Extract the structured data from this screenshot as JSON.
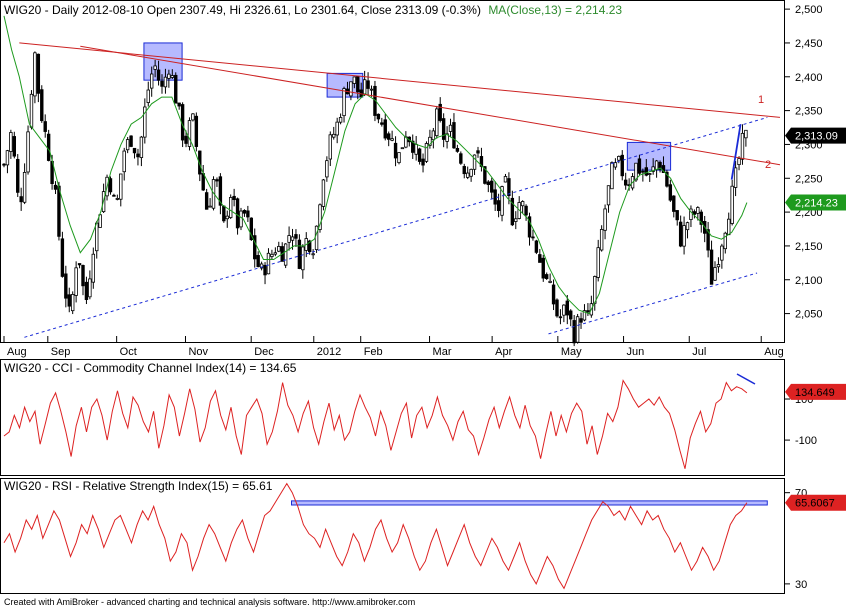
{
  "chart_data": [
    {
      "type": "candlestick",
      "title_prefix": "WIG20 - Daily 2012-08-10 Open 2307.49, Hi 2326.61, Lo 2301.64, Close 2313.09 (-0.3%)",
      "ma_label": "MA(Close,13) = 2,214.23",
      "x_month_labels": [
        "Aug",
        "Sep",
        "Oct",
        "Nov",
        "Dec",
        "2012",
        "Feb",
        "Mar",
        "Apr",
        "May",
        "Jun",
        "Jul",
        "Aug"
      ],
      "y_ticks": [
        "2,500",
        "2,450",
        "2,400",
        "2,350",
        "2,300",
        "2,250",
        "2,200",
        "2,150",
        "2,100",
        "2,050"
      ],
      "y_tick_values": [
        2500,
        2450,
        2400,
        2350,
        2300,
        2250,
        2200,
        2150,
        2100,
        2050
      ],
      "ylim": [
        2008,
        2512
      ],
      "last_close_label": "2,313.09",
      "last_close": 2313.09,
      "ma_value_label": "2,214.23",
      "ma_value": 2214.23,
      "line_labels": [
        "1",
        "2"
      ],
      "close_path": [
        {
          "d": 0,
          "v": 2270
        },
        {
          "d": 3,
          "v": 2320
        },
        {
          "d": 6,
          "v": 2200
        },
        {
          "d": 9,
          "v": 2300
        },
        {
          "d": 12,
          "v": 2440
        },
        {
          "d": 14,
          "v": 2360
        },
        {
          "d": 17,
          "v": 2300
        },
        {
          "d": 20,
          "v": 2230
        },
        {
          "d": 23,
          "v": 2110
        },
        {
          "d": 26,
          "v": 2040
        },
        {
          "d": 29,
          "v": 2150
        },
        {
          "d": 32,
          "v": 2060
        },
        {
          "d": 35,
          "v": 2150
        },
        {
          "d": 38,
          "v": 2210
        },
        {
          "d": 41,
          "v": 2260
        },
        {
          "d": 44,
          "v": 2200
        },
        {
          "d": 47,
          "v": 2290
        },
        {
          "d": 50,
          "v": 2310
        },
        {
          "d": 53,
          "v": 2280
        },
        {
          "d": 56,
          "v": 2370
        },
        {
          "d": 59,
          "v": 2420
        },
        {
          "d": 62,
          "v": 2380
        },
        {
          "d": 65,
          "v": 2420
        },
        {
          "d": 68,
          "v": 2360
        },
        {
          "d": 71,
          "v": 2300
        },
        {
          "d": 74,
          "v": 2340
        },
        {
          "d": 77,
          "v": 2260
        },
        {
          "d": 80,
          "v": 2200
        },
        {
          "d": 83,
          "v": 2260
        },
        {
          "d": 86,
          "v": 2170
        },
        {
          "d": 89,
          "v": 2230
        },
        {
          "d": 92,
          "v": 2180
        },
        {
          "d": 95,
          "v": 2200
        },
        {
          "d": 98,
          "v": 2140
        },
        {
          "d": 101,
          "v": 2110
        },
        {
          "d": 104,
          "v": 2130
        },
        {
          "d": 107,
          "v": 2150
        },
        {
          "d": 110,
          "v": 2140
        },
        {
          "d": 113,
          "v": 2180
        },
        {
          "d": 116,
          "v": 2130
        },
        {
          "d": 119,
          "v": 2160
        },
        {
          "d": 122,
          "v": 2150
        },
        {
          "d": 125,
          "v": 2250
        },
        {
          "d": 128,
          "v": 2300
        },
        {
          "d": 131,
          "v": 2330
        },
        {
          "d": 134,
          "v": 2380
        },
        {
          "d": 137,
          "v": 2400
        },
        {
          "d": 140,
          "v": 2370
        },
        {
          "d": 143,
          "v": 2390
        },
        {
          "d": 146,
          "v": 2350
        },
        {
          "d": 149,
          "v": 2330
        },
        {
          "d": 152,
          "v": 2310
        },
        {
          "d": 155,
          "v": 2280
        },
        {
          "d": 158,
          "v": 2320
        },
        {
          "d": 161,
          "v": 2300
        },
        {
          "d": 164,
          "v": 2260
        },
        {
          "d": 167,
          "v": 2300
        },
        {
          "d": 170,
          "v": 2340
        },
        {
          "d": 173,
          "v": 2310
        },
        {
          "d": 176,
          "v": 2320
        },
        {
          "d": 179,
          "v": 2280
        },
        {
          "d": 182,
          "v": 2260
        },
        {
          "d": 185,
          "v": 2290
        },
        {
          "d": 188,
          "v": 2260
        },
        {
          "d": 191,
          "v": 2230
        },
        {
          "d": 194,
          "v": 2200
        },
        {
          "d": 197,
          "v": 2240
        },
        {
          "d": 200,
          "v": 2190
        },
        {
          "d": 203,
          "v": 2220
        },
        {
          "d": 206,
          "v": 2180
        },
        {
          "d": 209,
          "v": 2150
        },
        {
          "d": 212,
          "v": 2110
        },
        {
          "d": 215,
          "v": 2080
        },
        {
          "d": 218,
          "v": 2040
        },
        {
          "d": 221,
          "v": 2060
        },
        {
          "d": 224,
          "v": 2020
        },
        {
          "d": 227,
          "v": 2050
        },
        {
          "d": 230,
          "v": 2040
        },
        {
          "d": 233,
          "v": 2120
        },
        {
          "d": 236,
          "v": 2200
        },
        {
          "d": 239,
          "v": 2260
        },
        {
          "d": 242,
          "v": 2270
        },
        {
          "d": 245,
          "v": 2240
        },
        {
          "d": 248,
          "v": 2270
        },
        {
          "d": 251,
          "v": 2260
        },
        {
          "d": 254,
          "v": 2250
        },
        {
          "d": 257,
          "v": 2280
        },
        {
          "d": 260,
          "v": 2250
        },
        {
          "d": 263,
          "v": 2200
        },
        {
          "d": 266,
          "v": 2160
        },
        {
          "d": 269,
          "v": 2190
        },
        {
          "d": 272,
          "v": 2200
        },
        {
          "d": 275,
          "v": 2180
        },
        {
          "d": 278,
          "v": 2100
        },
        {
          "d": 281,
          "v": 2140
        },
        {
          "d": 284,
          "v": 2190
        },
        {
          "d": 287,
          "v": 2240
        },
        {
          "d": 290,
          "v": 2300
        },
        {
          "d": 292,
          "v": 2313
        }
      ],
      "ma_path": [
        {
          "d": 0,
          "v": 2490
        },
        {
          "d": 3,
          "v": 2440
        },
        {
          "d": 6,
          "v": 2400
        },
        {
          "d": 10,
          "v": 2330
        },
        {
          "d": 14,
          "v": 2310
        },
        {
          "d": 18,
          "v": 2290
        },
        {
          "d": 22,
          "v": 2230
        },
        {
          "d": 26,
          "v": 2180
        },
        {
          "d": 30,
          "v": 2140
        },
        {
          "d": 34,
          "v": 2160
        },
        {
          "d": 38,
          "v": 2200
        },
        {
          "d": 42,
          "v": 2260
        },
        {
          "d": 46,
          "v": 2300
        },
        {
          "d": 50,
          "v": 2330
        },
        {
          "d": 54,
          "v": 2340
        },
        {
          "d": 58,
          "v": 2360
        },
        {
          "d": 62,
          "v": 2370
        },
        {
          "d": 66,
          "v": 2370
        },
        {
          "d": 70,
          "v": 2330
        },
        {
          "d": 74,
          "v": 2300
        },
        {
          "d": 78,
          "v": 2260
        },
        {
          "d": 82,
          "v": 2230
        },
        {
          "d": 86,
          "v": 2210
        },
        {
          "d": 90,
          "v": 2200
        },
        {
          "d": 94,
          "v": 2190
        },
        {
          "d": 98,
          "v": 2160
        },
        {
          "d": 102,
          "v": 2130
        },
        {
          "d": 106,
          "v": 2130
        },
        {
          "d": 110,
          "v": 2140
        },
        {
          "d": 114,
          "v": 2150
        },
        {
          "d": 118,
          "v": 2150
        },
        {
          "d": 122,
          "v": 2160
        },
        {
          "d": 126,
          "v": 2200
        },
        {
          "d": 130,
          "v": 2260
        },
        {
          "d": 134,
          "v": 2320
        },
        {
          "d": 138,
          "v": 2360
        },
        {
          "d": 142,
          "v": 2375
        },
        {
          "d": 146,
          "v": 2365
        },
        {
          "d": 150,
          "v": 2345
        },
        {
          "d": 154,
          "v": 2325
        },
        {
          "d": 158,
          "v": 2310
        },
        {
          "d": 162,
          "v": 2300
        },
        {
          "d": 166,
          "v": 2295
        },
        {
          "d": 170,
          "v": 2310
        },
        {
          "d": 174,
          "v": 2315
        },
        {
          "d": 178,
          "v": 2305
        },
        {
          "d": 182,
          "v": 2290
        },
        {
          "d": 186,
          "v": 2275
        },
        {
          "d": 190,
          "v": 2260
        },
        {
          "d": 194,
          "v": 2240
        },
        {
          "d": 198,
          "v": 2220
        },
        {
          "d": 202,
          "v": 2205
        },
        {
          "d": 206,
          "v": 2190
        },
        {
          "d": 210,
          "v": 2160
        },
        {
          "d": 214,
          "v": 2120
        },
        {
          "d": 218,
          "v": 2090
        },
        {
          "d": 222,
          "v": 2070
        },
        {
          "d": 226,
          "v": 2055
        },
        {
          "d": 230,
          "v": 2050
        },
        {
          "d": 234,
          "v": 2080
        },
        {
          "d": 238,
          "v": 2140
        },
        {
          "d": 242,
          "v": 2200
        },
        {
          "d": 246,
          "v": 2240
        },
        {
          "d": 250,
          "v": 2255
        },
        {
          "d": 254,
          "v": 2260
        },
        {
          "d": 258,
          "v": 2265
        },
        {
          "d": 262,
          "v": 2250
        },
        {
          "d": 266,
          "v": 2220
        },
        {
          "d": 270,
          "v": 2200
        },
        {
          "d": 274,
          "v": 2185
        },
        {
          "d": 278,
          "v": 2165
        },
        {
          "d": 282,
          "v": 2160
        },
        {
          "d": 286,
          "v": 2170
        },
        {
          "d": 290,
          "v": 2195
        },
        {
          "d": 292,
          "v": 2214
        }
      ],
      "resistance_line": [
        {
          "d": 6,
          "v": 2450
        },
        {
          "d": 305,
          "v": 2340
        }
      ],
      "support_line": [
        {
          "d": 8,
          "v": 2015
        },
        {
          "d": 300,
          "v": 2340
        }
      ],
      "red_line_2": [
        {
          "d": 30,
          "v": 2445
        },
        {
          "d": 305,
          "v": 2270
        }
      ],
      "lower_channel": [
        {
          "d": 214,
          "v": 2020
        },
        {
          "d": 296,
          "v": 2110
        }
      ],
      "highlight_boxes": [
        {
          "d0": 55,
          "d1": 70,
          "v0": 2395,
          "v1": 2450
        },
        {
          "d0": 127,
          "d1": 141,
          "v0": 2370,
          "v1": 2405
        },
        {
          "d0": 245,
          "d1": 262,
          "v0": 2262,
          "v1": 2303
        }
      ]
    },
    {
      "type": "line",
      "title_prefix": "WIG20 - CCI - Commodity Channel Index(14) = 134.65",
      "y_ticks": [
        "100",
        "-100"
      ],
      "y_tick_values": [
        100,
        -100
      ],
      "ylim": [
        -270,
        290
      ],
      "last_value_label": "134.649",
      "last_value": 134.65,
      "values": [
        -80,
        -60,
        20,
        -40,
        60,
        -10,
        40,
        -120,
        -20,
        80,
        130,
        40,
        -60,
        -180,
        -30,
        60,
        -60,
        60,
        100,
        20,
        -100,
        40,
        140,
        30,
        -40,
        110,
        70,
        -10,
        -60,
        40,
        -140,
        -30,
        120,
        60,
        -80,
        30,
        150,
        50,
        -110,
        -40,
        90,
        140,
        20,
        -50,
        60,
        -80,
        -170,
        20,
        60,
        100,
        30,
        -120,
        -60,
        40,
        180,
        70,
        20,
        -60,
        30,
        90,
        -40,
        -120,
        -10,
        80,
        -50,
        20,
        -100,
        -60,
        40,
        120,
        60,
        10,
        -80,
        40,
        -30,
        -150,
        -60,
        30,
        80,
        -90,
        20,
        60,
        -40,
        20,
        110,
        20,
        -30,
        -100,
        -10,
        40,
        -50,
        -80,
        -170,
        -90,
        0,
        60,
        -40,
        40,
        110,
        20,
        -40,
        70,
        -30,
        -80,
        -190,
        -70,
        40,
        -80,
        20,
        -60,
        30,
        80,
        40,
        -120,
        -30,
        -170,
        -80,
        30,
        -10,
        60,
        190,
        150,
        100,
        60,
        80,
        100,
        70,
        110,
        60,
        30,
        -50,
        -150,
        -240,
        -90,
        -20,
        40,
        -60,
        -20,
        80,
        100,
        180,
        140,
        160,
        150,
        130
      ]
    },
    {
      "type": "line",
      "title_prefix": "WIG20 - RSI - Relative Strength Index(15) = 65.61",
      "y_ticks": [
        "70",
        "30"
      ],
      "y_tick_values": [
        70,
        30
      ],
      "ylim": [
        26,
        76
      ],
      "last_value_label": "65.6067",
      "last_value": 65.61,
      "band": [
        64.6,
        66.4
      ],
      "values": [
        48,
        52,
        44,
        50,
        58,
        54,
        60,
        50,
        56,
        62,
        58,
        50,
        42,
        48,
        56,
        52,
        60,
        54,
        46,
        52,
        58,
        60,
        54,
        48,
        56,
        62,
        58,
        64,
        56,
        50,
        40,
        44,
        52,
        48,
        36,
        42,
        50,
        56,
        52,
        46,
        40,
        48,
        54,
        58,
        50,
        44,
        52,
        60,
        62,
        66,
        70,
        74,
        70,
        64,
        56,
        52,
        50,
        46,
        54,
        48,
        42,
        38,
        44,
        52,
        48,
        40,
        46,
        54,
        58,
        50,
        44,
        48,
        56,
        50,
        42,
        36,
        40,
        48,
        54,
        46,
        38,
        44,
        50,
        56,
        48,
        42,
        38,
        44,
        50,
        46,
        40,
        36,
        42,
        48,
        40,
        34,
        30,
        36,
        42,
        38,
        32,
        28,
        34,
        40,
        46,
        52,
        58,
        62,
        66,
        64,
        60,
        62,
        58,
        64,
        60,
        56,
        62,
        58,
        60,
        54,
        50,
        44,
        48,
        42,
        36,
        40,
        46,
        42,
        36,
        40,
        48,
        56,
        60,
        62,
        65.6
      ]
    }
  ],
  "footer": {
    "text": "Created with AmiBroker - advanced charting and technical analysis software. http://www.amibroker.com"
  }
}
